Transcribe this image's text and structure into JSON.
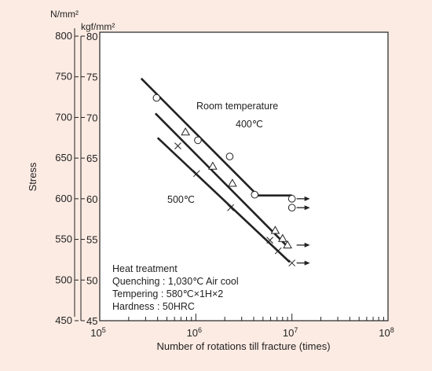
{
  "chart_data": {
    "type": "scatter",
    "title": "",
    "xlabel": "Number of rotations till fracture (times)",
    "ylabel": "Stress",
    "x_scale": "log",
    "xlim": [
      100000,
      100000000
    ],
    "ylim_left": [
      450,
      800
    ],
    "ylim_right": [
      45,
      80
    ],
    "left_unit": "N/mm²",
    "right_unit": "kgf/mm²",
    "x_ticks": [
      {
        "value": 100000,
        "base": "10",
        "exp": "5"
      },
      {
        "value": 1000000,
        "base": "10",
        "exp": "6"
      },
      {
        "value": 10000000,
        "base": "10",
        "exp": "7"
      },
      {
        "value": 100000000,
        "base": "10",
        "exp": "8"
      }
    ],
    "left_ticks": [
      "450",
      "500",
      "550",
      "600",
      "650",
      "700",
      "750",
      "800"
    ],
    "right_ticks": [
      "45",
      "50",
      "55",
      "60",
      "65",
      "70",
      "75",
      "80"
    ],
    "grid": false,
    "series": [
      {
        "name": "Room temperature",
        "marker": "circle",
        "line": [
          [
            270000,
            748
          ],
          [
            4400000,
            604
          ],
          [
            10000000,
            604
          ]
        ],
        "points": [
          [
            390000,
            724
          ],
          [
            1050000,
            672
          ],
          [
            2250000,
            652
          ],
          [
            4100000,
            605
          ]
        ],
        "runouts": [
          [
            10000000,
            600
          ],
          [
            10000000,
            589
          ]
        ]
      },
      {
        "name": "400℃",
        "marker": "triangle",
        "line": [
          [
            380000,
            705
          ],
          [
            9200000,
            540
          ]
        ],
        "points": [
          [
            780000,
            682
          ],
          [
            1500000,
            640
          ],
          [
            2400000,
            619
          ],
          [
            6700000,
            561
          ],
          [
            8000000,
            551
          ],
          [
            9000000,
            543
          ]
        ],
        "runouts": [
          [
            10000000,
            543
          ]
        ]
      },
      {
        "name": "500℃",
        "marker": "cross",
        "line": [
          [
            400000,
            675
          ],
          [
            9500000,
            522
          ]
        ],
        "points": [
          [
            650000,
            665
          ],
          [
            1020000,
            631
          ],
          [
            2300000,
            589
          ],
          [
            5900000,
            549
          ],
          [
            7200000,
            536
          ],
          [
            10000000,
            521
          ]
        ],
        "runouts": [
          [
            10000000,
            521
          ]
        ]
      }
    ],
    "annotations": {
      "heat_treatment_title": "Heat treatment",
      "quenching": "Quenching : 1,030℃ Air cool",
      "tempering": "Tempering : 580℃×1H×2",
      "hardness": "Hardness :  50HRC"
    },
    "colors": {
      "background": "#fcebe3",
      "plot": "#ffffff",
      "ink": "#222222"
    }
  }
}
